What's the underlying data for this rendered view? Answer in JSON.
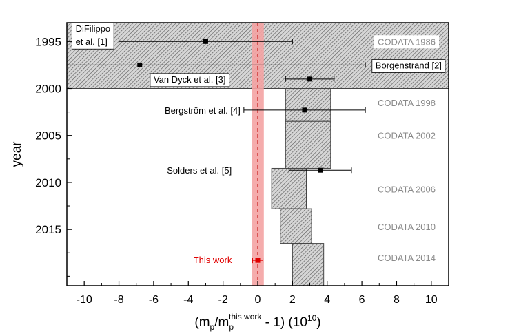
{
  "chart_data": {
    "type": "scatter",
    "title": "",
    "xlabel": {
      "prefix": "(m",
      "sub1": "p",
      "mid": "/m",
      "sub2": "p",
      "sup": "this work",
      "suffix": " - 1) (10",
      "exp": "10",
      "close": ")"
    },
    "ylabel": "year",
    "xlim": [
      -11,
      11
    ],
    "ylim": [
      1993,
      2021
    ],
    "x_ticks": [
      -10,
      -8,
      -6,
      -4,
      -2,
      0,
      2,
      4,
      6,
      8,
      10
    ],
    "y_ticks": [
      1995,
      2000,
      2005,
      2010,
      2015
    ],
    "this_work_band": {
      "center": 0,
      "half_width": 0.35,
      "color": "#f4a3a3"
    },
    "codata_regions": [
      {
        "name": "CODATA 1986",
        "year_start": 1993,
        "year_end": 2000,
        "x_min": -11,
        "x_max": 11
      },
      {
        "name": "CODATA 1998",
        "year_start": 2000,
        "year_end": 2003.5,
        "x_min": 1.6,
        "x_max": 4.2
      },
      {
        "name": "CODATA 2002",
        "year_start": 2003.5,
        "year_end": 2008.5,
        "x_min": 1.6,
        "x_max": 4.2
      },
      {
        "name": "CODATA 2006",
        "year_start": 2008.5,
        "year_end": 2012.8,
        "x_min": 0.8,
        "x_max": 2.8
      },
      {
        "name": "CODATA 2010",
        "year_start": 2012.8,
        "year_end": 2016.5,
        "x_min": 1.3,
        "x_max": 3.1
      },
      {
        "name": "CODATA 2014",
        "year_start": 2016.5,
        "year_end": 2021,
        "x_min": 2.0,
        "x_max": 3.8
      }
    ],
    "codata_label_years": [
      1995,
      2001.5,
      2005,
      2010.7,
      2014.7,
      2018
    ],
    "measurements": [
      {
        "label": "DiFilippo\net al. [1]",
        "x": -3.0,
        "xerr": 5.0,
        "year": 1995
      },
      {
        "label": "Borgenstrand [2]",
        "x": -6.8,
        "xerr": 13.0,
        "year": 1997.5
      },
      {
        "label": "Van Dyck et al. [3]",
        "x": 3.0,
        "xerr": 1.4,
        "year": 1999
      },
      {
        "label": "Bergström et al. [4]",
        "x": 2.7,
        "xerr": 3.5,
        "year": 2002.3
      },
      {
        "label": "Solders et al. [5]",
        "x": 3.6,
        "xerr": 1.8,
        "year": 2008.7
      }
    ],
    "this_work": {
      "label": "This work",
      "x": 0.0,
      "xerr": 0.3,
      "year": 2018.3,
      "color": "#e00000"
    }
  }
}
